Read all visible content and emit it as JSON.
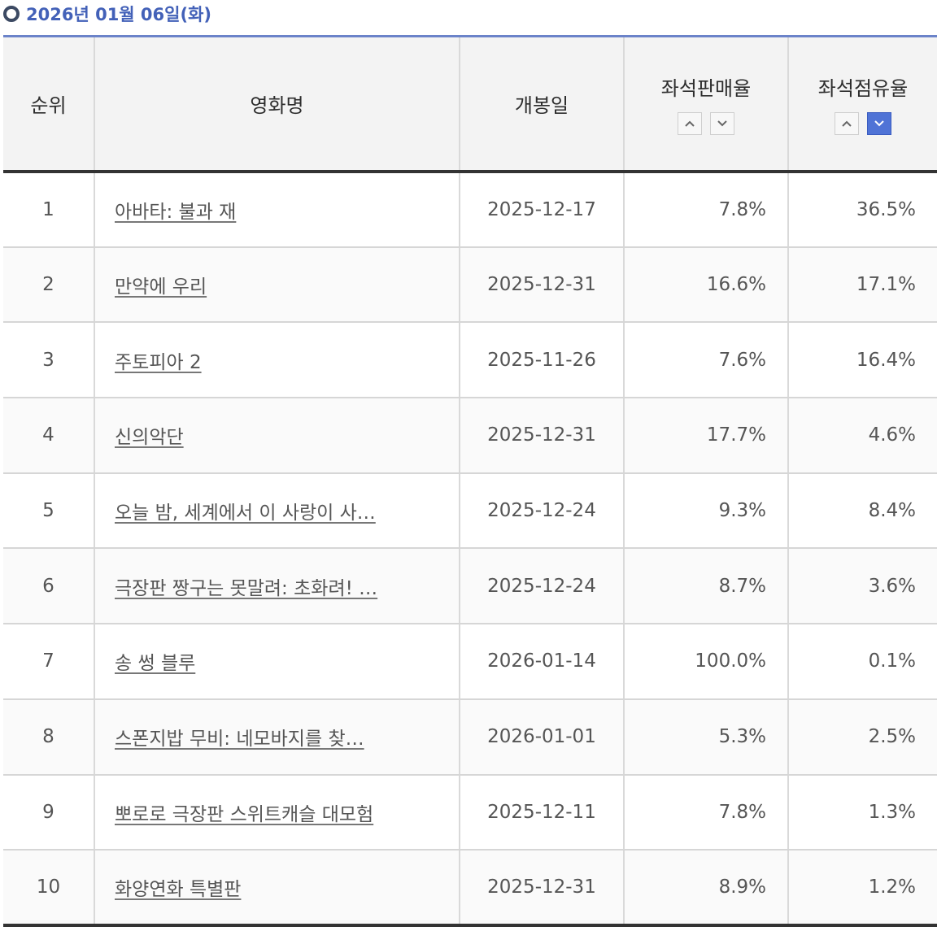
{
  "header": {
    "date": "2026년 01월 06일(화)"
  },
  "columns": {
    "rank": "순위",
    "title": "영화명",
    "release": "개봉일",
    "seat_sales": "좌석판매율",
    "seat_occupancy": "좌석점유율"
  },
  "sort": {
    "active_column": "seat_occupancy",
    "active_direction": "desc",
    "accent_color": "#4f73d6",
    "up_icon": "chevron-up-icon",
    "down_icon": "chevron-down-icon"
  },
  "rows": [
    {
      "rank": "1",
      "title": "아바타: 불과 재",
      "release": "2025-12-17",
      "seat_sales": "7.8%",
      "seat_occupancy": "36.5%"
    },
    {
      "rank": "2",
      "title": "만약에 우리",
      "release": "2025-12-31",
      "seat_sales": "16.6%",
      "seat_occupancy": "17.1%"
    },
    {
      "rank": "3",
      "title": "주토피아 2",
      "release": "2025-11-26",
      "seat_sales": "7.6%",
      "seat_occupancy": "16.4%"
    },
    {
      "rank": "4",
      "title": "신의악단",
      "release": "2025-12-31",
      "seat_sales": "17.7%",
      "seat_occupancy": "4.6%"
    },
    {
      "rank": "5",
      "title": "오늘 밤, 세계에서 이 사랑이 사…",
      "release": "2025-12-24",
      "seat_sales": "9.3%",
      "seat_occupancy": "8.4%"
    },
    {
      "rank": "6",
      "title": "극장판 짱구는 못말려: 초화려! …",
      "release": "2025-12-24",
      "seat_sales": "8.7%",
      "seat_occupancy": "3.6%"
    },
    {
      "rank": "7",
      "title": "송 썽 블루",
      "release": "2026-01-14",
      "seat_sales": "100.0%",
      "seat_occupancy": "0.1%"
    },
    {
      "rank": "8",
      "title": "스폰지밥 무비: 네모바지를 찾…",
      "release": "2026-01-01",
      "seat_sales": "5.3%",
      "seat_occupancy": "2.5%"
    },
    {
      "rank": "9",
      "title": "뽀로로 극장판 스위트캐슬 대모험",
      "release": "2025-12-11",
      "seat_sales": "7.8%",
      "seat_occupancy": "1.3%"
    },
    {
      "rank": "10",
      "title": "화양연화 특별판",
      "release": "2025-12-31",
      "seat_sales": "8.9%",
      "seat_occupancy": "1.2%"
    }
  ]
}
